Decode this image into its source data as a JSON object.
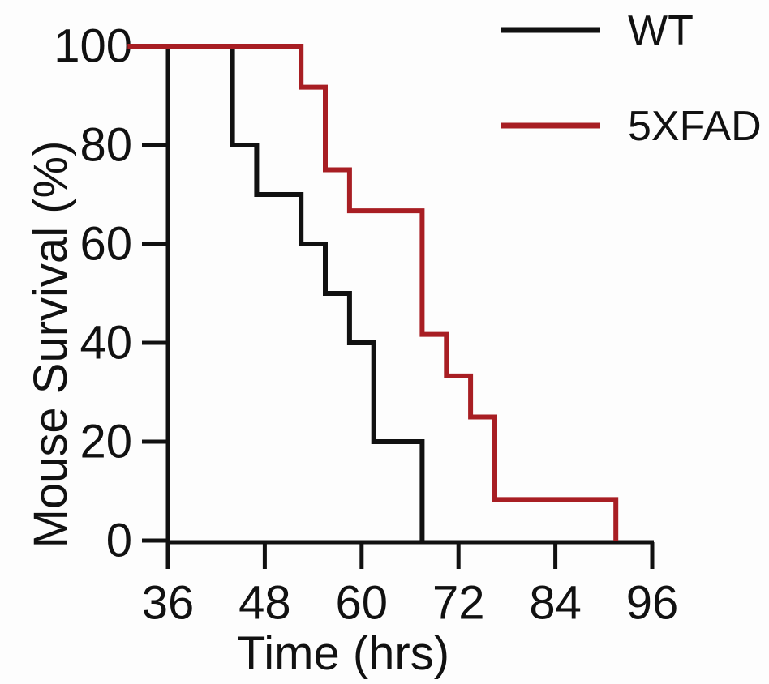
{
  "figure": {
    "background": "#fdfdfd",
    "text_color": "#111111"
  },
  "chart_data": {
    "type": "line",
    "subtype": "kaplan-meier-step",
    "title": "",
    "xlabel": "Time (hrs)",
    "ylabel": "Mouse Survival (%)",
    "xlim": [
      31,
      96
    ],
    "ylim": [
      0,
      100
    ],
    "x_ticks": [
      36,
      48,
      60,
      72,
      84,
      96
    ],
    "y_ticks": [
      0,
      20,
      40,
      60,
      80,
      100
    ],
    "grid": false,
    "legend_position": "top-right",
    "axis_color": "#111111",
    "series": [
      {
        "name": "WT",
        "color": "#111111",
        "death_times": [
          44,
          47,
          52.5,
          55.5,
          58.5,
          61.5,
          67.5
        ],
        "survival_levels": [
          100,
          80,
          70,
          60,
          50,
          40,
          20,
          0
        ],
        "points": [
          [
            31,
            100
          ],
          [
            44,
            100
          ],
          [
            44,
            80
          ],
          [
            47,
            80
          ],
          [
            47,
            70
          ],
          [
            52.5,
            70
          ],
          [
            52.5,
            60
          ],
          [
            55.5,
            60
          ],
          [
            55.5,
            50
          ],
          [
            58.5,
            50
          ],
          [
            58.5,
            40
          ],
          [
            61.5,
            40
          ],
          [
            61.5,
            20
          ],
          [
            67.5,
            20
          ],
          [
            67.5,
            0
          ]
        ]
      },
      {
        "name": "5XFAD",
        "color": "#a81e23",
        "death_times": [
          52.5,
          55.5,
          58.5,
          67.5,
          70.5,
          73.5,
          76.5,
          91.5
        ],
        "survival_levels": [
          100,
          91.7,
          75,
          66.7,
          41.7,
          33.3,
          25,
          8.3,
          0
        ],
        "points": [
          [
            31,
            100
          ],
          [
            52.5,
            100
          ],
          [
            52.5,
            91.7
          ],
          [
            55.5,
            91.7
          ],
          [
            55.5,
            75
          ],
          [
            58.5,
            75
          ],
          [
            58.5,
            66.7
          ],
          [
            67.5,
            66.7
          ],
          [
            67.5,
            41.7
          ],
          [
            70.5,
            41.7
          ],
          [
            70.5,
            33.3
          ],
          [
            73.5,
            33.3
          ],
          [
            73.5,
            25
          ],
          [
            76.5,
            25
          ],
          [
            76.5,
            8.3
          ],
          [
            91.5,
            8.3
          ],
          [
            91.5,
            0
          ]
        ]
      }
    ]
  }
}
